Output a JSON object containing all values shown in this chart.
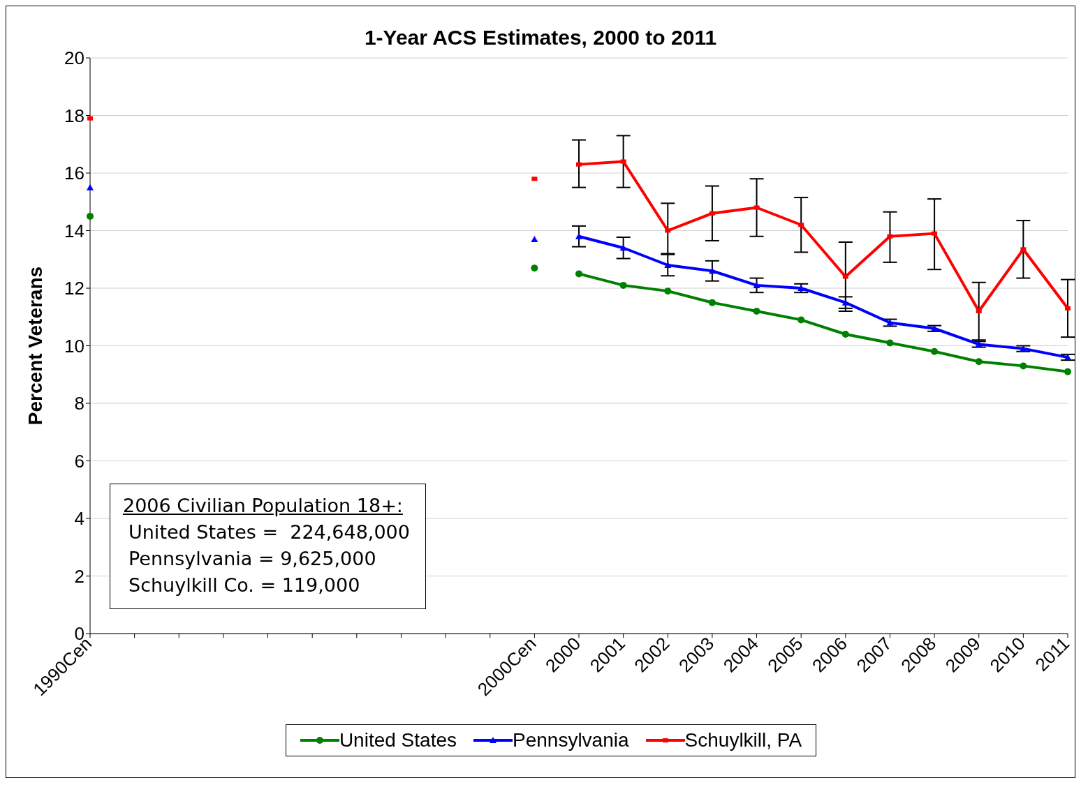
{
  "chart_data": {
    "type": "line",
    "title": "1-Year ACS Estimates, 2000 to 2011",
    "ylabel": "Percent Veterans",
    "categories": [
      "1990Cen",
      null,
      null,
      null,
      null,
      null,
      null,
      null,
      null,
      null,
      "2000Cen",
      "2000",
      "2001",
      "2002",
      "2003",
      "2004",
      "2005",
      "2006",
      "2007",
      "2008",
      "2009",
      "2010",
      "2011"
    ],
    "series": [
      {
        "type": "scatter",
        "color": "#008000",
        "marker": "circle",
        "values": [
          14.5,
          null,
          null,
          null,
          null,
          null,
          null,
          null,
          null,
          null,
          12.7,
          null,
          null,
          null,
          null,
          null,
          null,
          null,
          null,
          null,
          null,
          null,
          null
        ]
      },
      {
        "type": "scatter",
        "color": "#0000ff",
        "marker": "triangle",
        "values": [
          15.5,
          null,
          null,
          null,
          null,
          null,
          null,
          null,
          null,
          null,
          13.7,
          null,
          null,
          null,
          null,
          null,
          null,
          null,
          null,
          null,
          null,
          null,
          null
        ]
      },
      {
        "type": "scatter",
        "color": "#ff0000",
        "marker": "square",
        "values": [
          17.9,
          null,
          null,
          null,
          null,
          null,
          null,
          null,
          null,
          null,
          15.8,
          null,
          null,
          null,
          null,
          null,
          null,
          null,
          null,
          null,
          null,
          null,
          null
        ]
      },
      {
        "name": "United States",
        "color": "#008000",
        "marker": "circle",
        "values": [
          null,
          null,
          null,
          null,
          null,
          null,
          null,
          null,
          null,
          null,
          null,
          12.5,
          12.1,
          11.9,
          11.5,
          11.2,
          10.9,
          10.4,
          10.1,
          9.8,
          9.45,
          9.3,
          9.1
        ]
      },
      {
        "name": "Pennsylvania",
        "color": "#0000ff",
        "marker": "triangle",
        "values": [
          null,
          null,
          null,
          null,
          null,
          null,
          null,
          null,
          null,
          null,
          null,
          13.8,
          13.4,
          12.8,
          12.6,
          12.1,
          12.0,
          11.5,
          10.8,
          10.6,
          10.05,
          9.9,
          9.6
        ],
        "errors": [
          null,
          null,
          null,
          null,
          null,
          null,
          null,
          null,
          null,
          null,
          null,
          0.36,
          0.37,
          0.37,
          0.35,
          0.25,
          0.15,
          0.2,
          0.12,
          0.1,
          0.1,
          0.1,
          0.1
        ]
      },
      {
        "name": "Schuylkill, PA",
        "color": "#ff0000",
        "marker": "square",
        "values": [
          null,
          null,
          null,
          null,
          null,
          null,
          null,
          null,
          null,
          null,
          null,
          16.3,
          16.4,
          14.0,
          14.6,
          14.8,
          14.2,
          12.4,
          13.8,
          13.9,
          11.2,
          13.35,
          11.3
        ],
        "errors": [
          null,
          null,
          null,
          null,
          null,
          null,
          null,
          null,
          null,
          null,
          null,
          [
            15.5,
            17.15
          ],
          [
            15.5,
            17.3
          ],
          [
            13.2,
            14.95
          ],
          [
            13.65,
            15.55
          ],
          [
            13.8,
            15.8
          ],
          [
            13.25,
            15.15
          ],
          [
            11.2,
            13.6
          ],
          [
            12.9,
            14.65
          ],
          [
            12.65,
            15.1
          ],
          [
            10.2,
            12.2
          ],
          [
            12.35,
            14.35
          ],
          [
            10.3,
            12.3
          ]
        ]
      }
    ],
    "ylim": [
      0,
      20
    ],
    "yticks": [
      0,
      2,
      4,
      6,
      8,
      10,
      12,
      14,
      16,
      18,
      20
    ],
    "grid": "y",
    "legend": "bottom",
    "line_style": "solid",
    "annotations": [
      "2006 Civilian Population 18+:",
      "United States =  224,648,000",
      "Pennsylvania = 9,625,000",
      "Schuylkill Co. = 119,000"
    ]
  }
}
